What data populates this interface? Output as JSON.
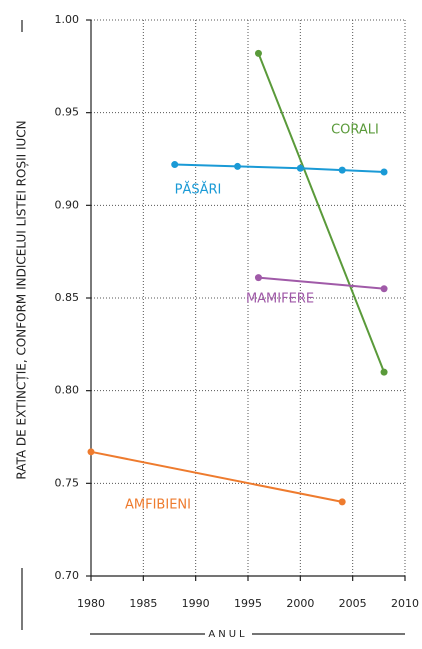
{
  "chart_data": {
    "type": "line",
    "y_label": "RATA DE EXTINCȚIE, CONFORM INDICELUI LISTEI ROȘII IUCN",
    "x_label": "ANUL",
    "xlim": [
      1980,
      2010
    ],
    "xticks": [
      1980,
      1985,
      1990,
      1995,
      2000,
      2005,
      2010
    ],
    "ylim": [
      0.7,
      1.0
    ],
    "yticks": [
      {
        "value": 0.7,
        "label": "0.70"
      },
      0.75,
      {
        "value": 0.8,
        "label": "0.80"
      },
      0.85,
      {
        "value": 0.9,
        "label": "0.90"
      },
      0.95,
      {
        "value": 1.0,
        "label": "1.00"
      }
    ],
    "grid": true,
    "series": [
      {
        "name": "CORALI",
        "color": "#5a9a3a",
        "x": [
          1996,
          2008
        ],
        "values": [
          0.982,
          0.81
        ]
      },
      {
        "name": "PĂSĂRI",
        "color": "#1a9ad6",
        "x": [
          1988,
          1994,
          2000,
          2004,
          2008
        ],
        "values": [
          0.922,
          0.921,
          0.92,
          0.919,
          0.918
        ]
      },
      {
        "name": "MAMIFERE",
        "color": "#a05aa8",
        "x": [
          1996,
          2008
        ],
        "values": [
          0.861,
          0.855
        ]
      },
      {
        "name": "AMFIBIENI",
        "color": "#ee7b2e",
        "x": [
          1980,
          2004
        ],
        "values": [
          0.767,
          0.74
        ]
      }
    ]
  }
}
